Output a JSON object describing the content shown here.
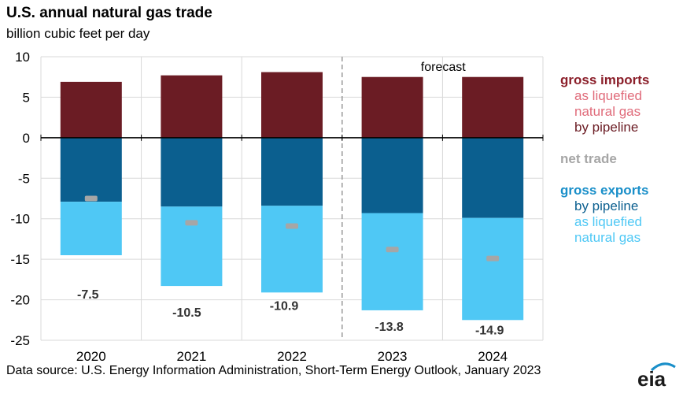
{
  "title": "U.S. annual natural gas trade",
  "subtitle": "billion  cubic  feet per day",
  "forecast_label": "forecast",
  "source": "Data source: U.S. Energy Information Administration,  Short-Term Energy Outlook, January 2023",
  "logo": "eia",
  "legend": {
    "imports_header": "gross imports",
    "imports_lng_1": "as liquefied",
    "imports_lng_2": "natural gas",
    "imports_pipeline": "by pipeline",
    "net_trade": "net trade",
    "exports_header": "gross exports",
    "exports_pipeline": "by pipeline",
    "exports_lng_1": "as liquefied",
    "exports_lng_2": "natural gas"
  },
  "colors": {
    "imports_header": "#8b1f2a",
    "imports_lng": "#e06b7a",
    "imports_pipeline": "#6b1c24",
    "net_trade": "#a6a6a6",
    "exports_header": "#1a8fc9",
    "exports_pipeline": "#0b5f8f",
    "exports_lng": "#4fc8f5"
  },
  "chart_data": {
    "type": "bar",
    "stacked": true,
    "categories": [
      "2020",
      "2021",
      "2022",
      "2023",
      "2024"
    ],
    "forecast_start": "2023",
    "ylim": [
      -25,
      10
    ],
    "yticks": [
      10,
      5,
      0,
      -5,
      -10,
      -15,
      -20,
      -25
    ],
    "grid": true,
    "series": [
      {
        "name": "gross imports by pipeline",
        "values": [
          6.9,
          7.7,
          8.1,
          7.5,
          7.5
        ]
      },
      {
        "name": "gross exports by pipeline",
        "values": [
          -7.9,
          -8.5,
          -8.4,
          -9.3,
          -9.9
        ]
      },
      {
        "name": "gross exports as liquefied natural gas",
        "values": [
          -6.6,
          -9.8,
          -10.7,
          -12.0,
          -12.6
        ]
      }
    ],
    "net_trade": [
      -7.5,
      -10.5,
      -10.9,
      -13.8,
      -14.9
    ],
    "net_trade_labels": [
      "-7.5",
      "-10.5",
      "-10.9",
      "-13.8",
      "-14.9"
    ]
  }
}
